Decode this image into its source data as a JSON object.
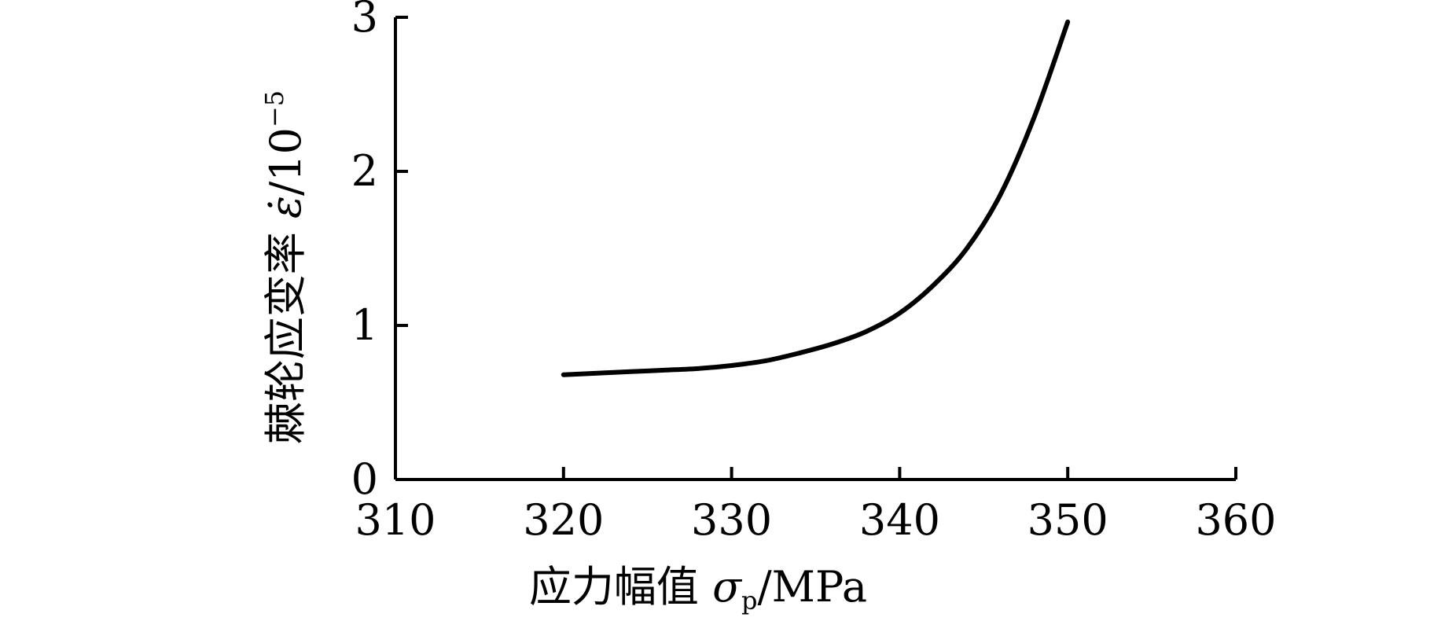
{
  "chart_data": {
    "type": "line",
    "title": "",
    "xlabel": "应力幅值 σp/MPa",
    "xlabel_parts": {
      "main": "应力幅值 ",
      "symbol": "σ",
      "subscript": "p",
      "unit": "/MPa"
    },
    "ylabel": "棘轮应变率 ε̇/10⁻⁵",
    "ylabel_parts": {
      "main": "棘轮应变率 ",
      "symbol": "ε̇",
      "unit": "/10",
      "exponent": "−5"
    },
    "xlim": [
      310,
      360
    ],
    "ylim": [
      0,
      3
    ],
    "xticks": [
      "310",
      "320",
      "330",
      "340",
      "350",
      "360"
    ],
    "yticks": [
      "0",
      "1",
      "2",
      "3"
    ],
    "grid": false,
    "legend": "none",
    "series": [
      {
        "color": "#000000",
        "x": [
          320,
          322,
          324,
          326,
          328,
          330,
          332,
          334,
          336,
          338,
          340,
          342,
          344,
          346,
          348,
          350
        ],
        "y": [
          0.68,
          0.69,
          0.7,
          0.71,
          0.72,
          0.74,
          0.77,
          0.82,
          0.88,
          0.96,
          1.08,
          1.26,
          1.5,
          1.85,
          2.35,
          2.97
        ]
      }
    ]
  }
}
